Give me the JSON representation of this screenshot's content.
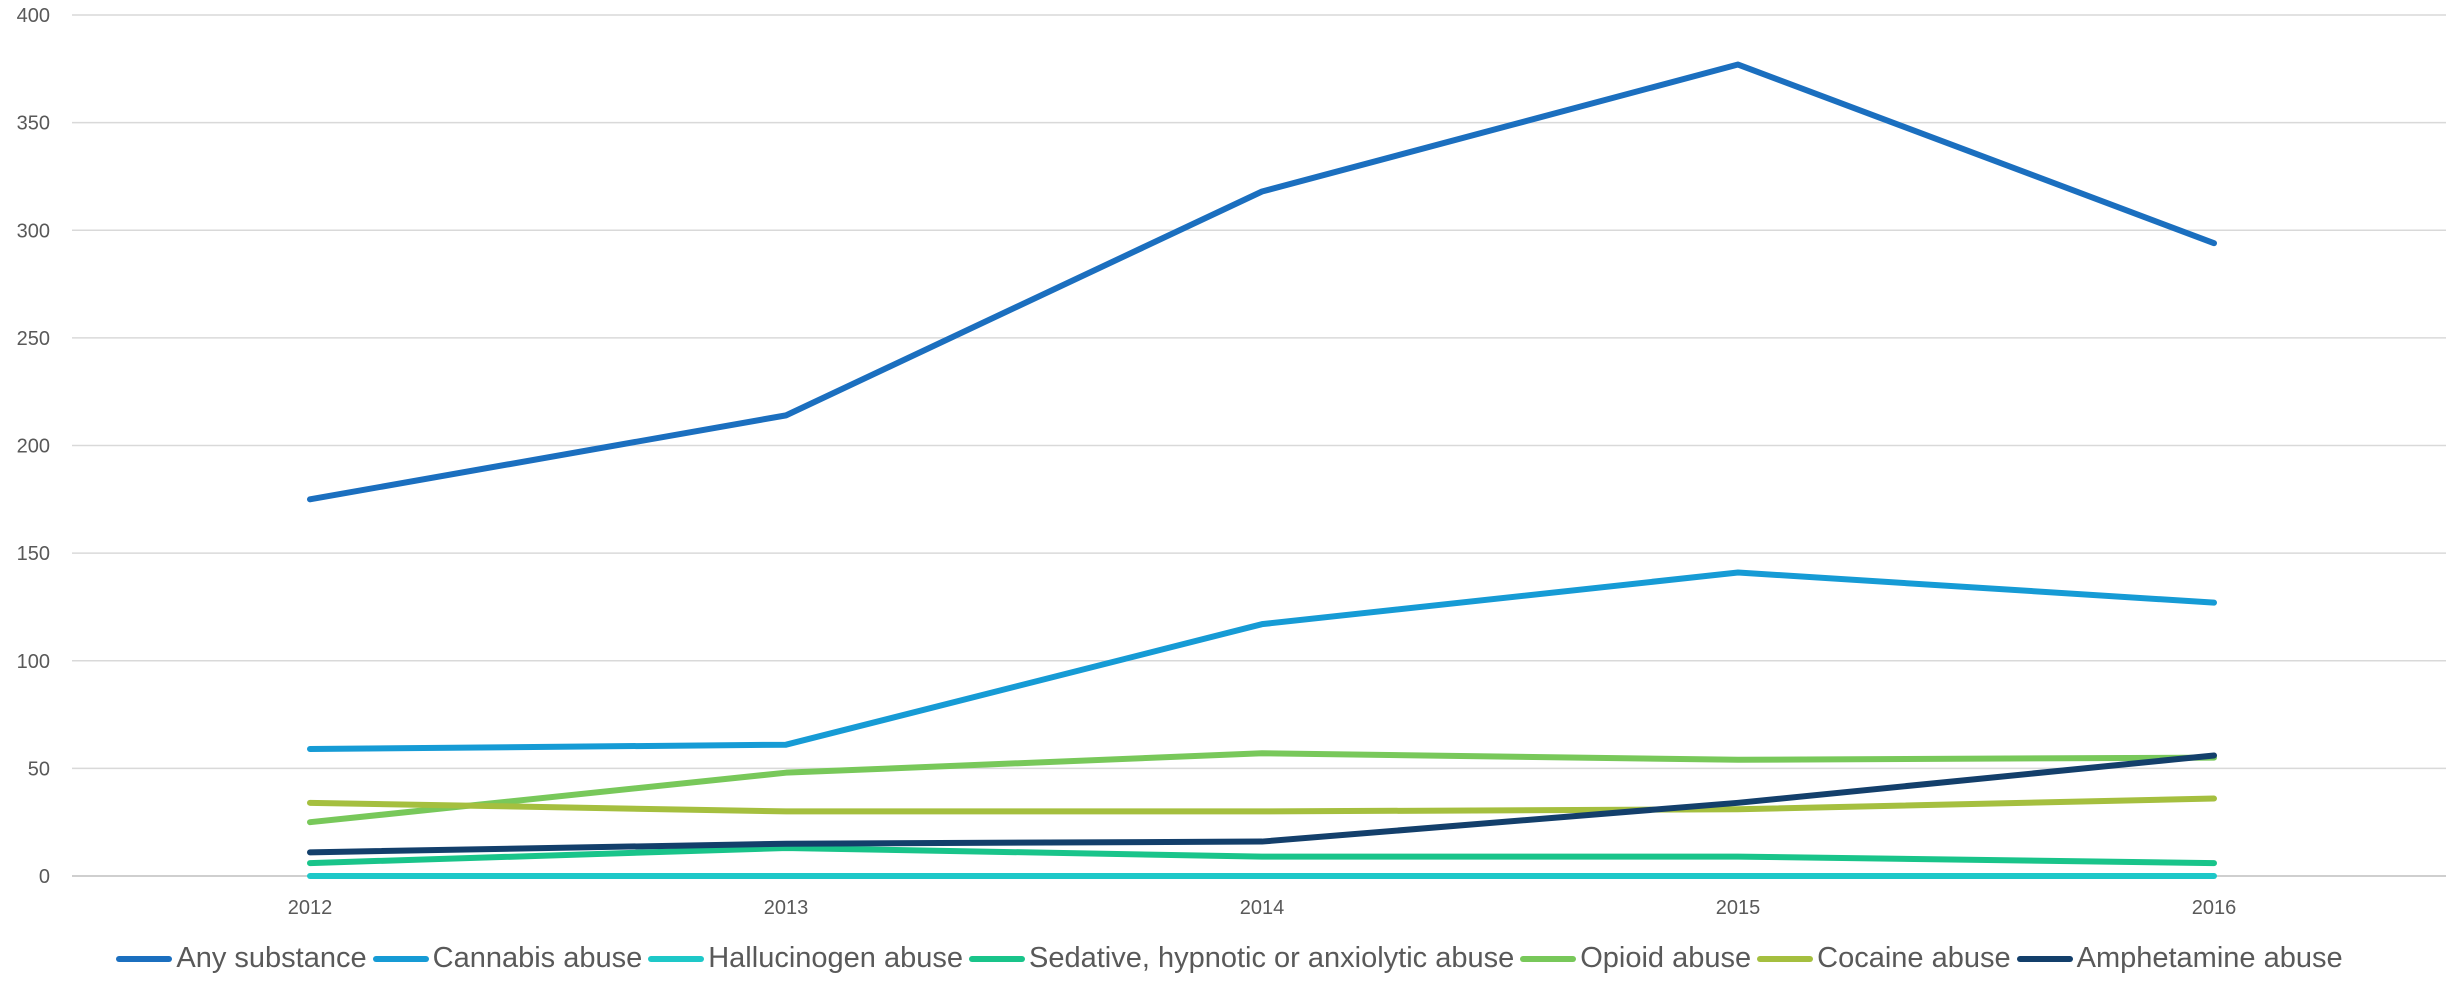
{
  "chart_data": {
    "type": "line",
    "title": "",
    "xlabel": "",
    "ylabel": "",
    "categories": [
      "2012",
      "2013",
      "2014",
      "2015",
      "2016"
    ],
    "ylim": [
      0,
      400
    ],
    "yticks": [
      0,
      50,
      100,
      150,
      200,
      250,
      300,
      350,
      400
    ],
    "grid": true,
    "legend_position": "bottom",
    "series": [
      {
        "name": "Any substance",
        "color": "#1b6fbf",
        "values": [
          175,
          214,
          318,
          377,
          294
        ]
      },
      {
        "name": "Cannabis abuse",
        "color": "#169bd5",
        "values": [
          59,
          61,
          117,
          141,
          127
        ]
      },
      {
        "name": "Hallucinogen abuse",
        "color": "#1ec8c8",
        "values": [
          0,
          0,
          0,
          0,
          0
        ]
      },
      {
        "name": "Sedative, hypnotic or anxiolytic abuse",
        "color": "#19c48a",
        "values": [
          6,
          13,
          9,
          9,
          6
        ]
      },
      {
        "name": "Opioid abuse",
        "color": "#78c85a",
        "values": [
          25,
          48,
          57,
          54,
          55
        ]
      },
      {
        "name": "Cocaine abuse",
        "color": "#a5bf3f",
        "values": [
          34,
          30,
          30,
          31,
          36
        ]
      },
      {
        "name": "Amphetamine abuse",
        "color": "#133f6b",
        "values": [
          11,
          15,
          16,
          34,
          56
        ]
      }
    ]
  }
}
